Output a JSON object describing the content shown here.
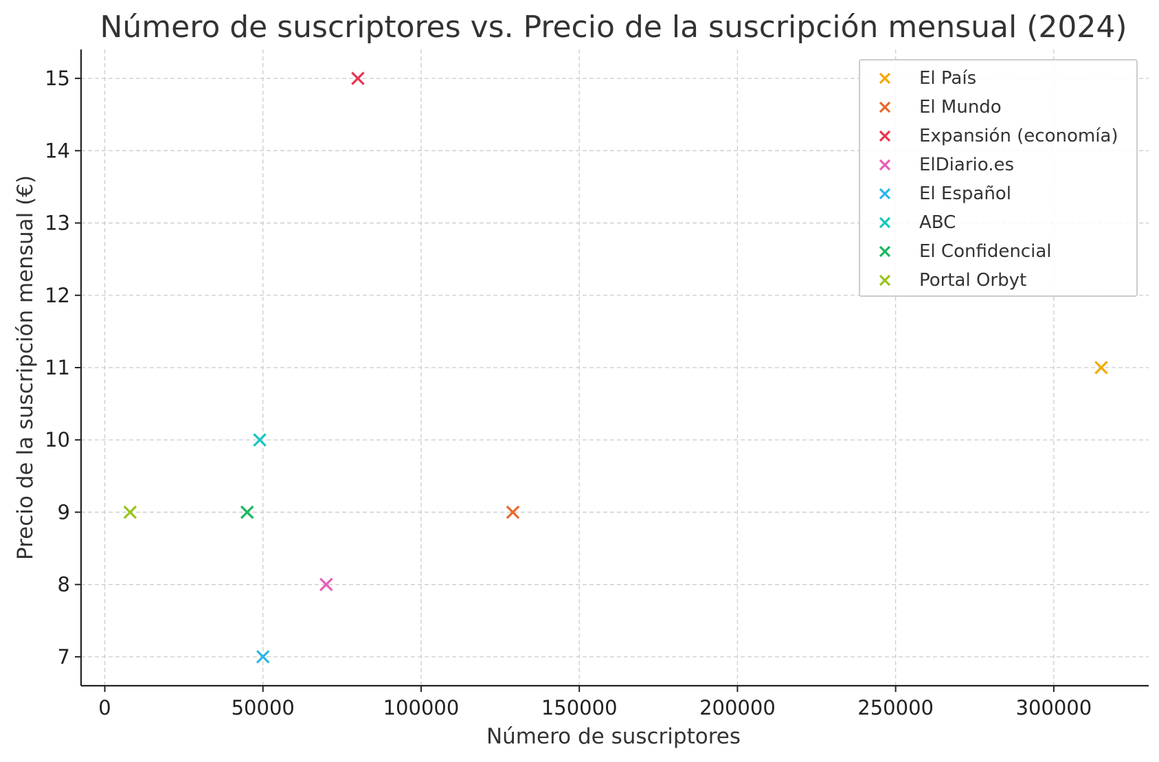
{
  "chart_data": {
    "type": "scatter",
    "title": "Número de suscriptores vs. Precio de la suscripción mensual (2024)",
    "xlabel": "Número de suscriptores",
    "ylabel": "Precio de la suscripción mensual (€)",
    "xlim": [
      -7500,
      330000
    ],
    "ylim": [
      6.6,
      15.4
    ],
    "xticks": [
      0,
      50000,
      100000,
      150000,
      200000,
      250000,
      300000
    ],
    "xtick_labels": [
      "0",
      "50000",
      "100000",
      "150000",
      "200000",
      "250000",
      "300000"
    ],
    "yticks": [
      7,
      8,
      9,
      10,
      11,
      12,
      13,
      14,
      15
    ],
    "ytick_labels": [
      "7",
      "8",
      "9",
      "10",
      "11",
      "12",
      "13",
      "14",
      "15"
    ],
    "grid": true,
    "marker": "x",
    "legend_position": "top-right",
    "series": [
      {
        "name": "El País",
        "color": "#f5a800",
        "x": [
          315000
        ],
        "y": [
          11
        ]
      },
      {
        "name": "El Mundo",
        "color": "#e8682a",
        "x": [
          129000
        ],
        "y": [
          9
        ]
      },
      {
        "name": "Expansión (economía)",
        "color": "#e8334f",
        "x": [
          80000
        ],
        "y": [
          15
        ]
      },
      {
        "name": "ElDiario.es",
        "color": "#e85db8",
        "x": [
          70000
        ],
        "y": [
          8
        ]
      },
      {
        "name": "El Español",
        "color": "#2bb4ee",
        "x": [
          50000
        ],
        "y": [
          7
        ]
      },
      {
        "name": "ABC",
        "color": "#17c6bd",
        "x": [
          49000
        ],
        "y": [
          10
        ]
      },
      {
        "name": "El Confidencial",
        "color": "#14b85c",
        "x": [
          45000
        ],
        "y": [
          9
        ]
      },
      {
        "name": "Portal Orbyt",
        "color": "#98c41a",
        "x": [
          8000
        ],
        "y": [
          9
        ]
      }
    ]
  }
}
